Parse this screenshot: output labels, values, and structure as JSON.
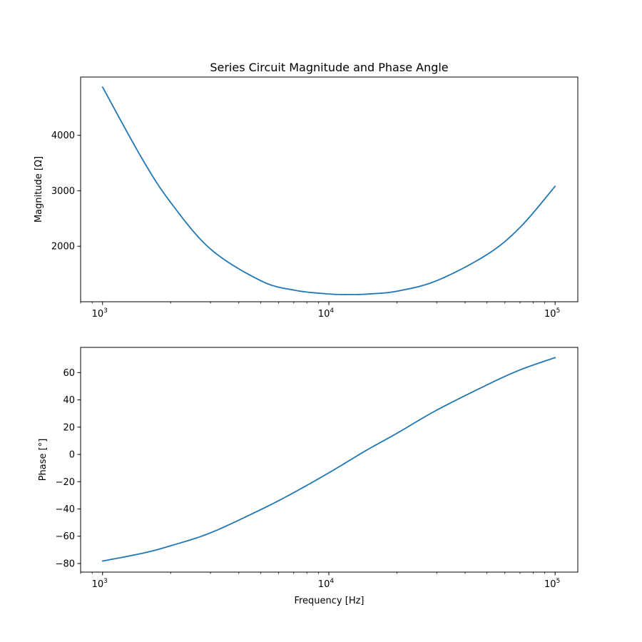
{
  "chart_data": [
    {
      "type": "line",
      "title": "Series Circuit Magnitude and Phase Angle",
      "xlabel": "",
      "ylabel": "Magnitude [Ω]",
      "xscale": "log",
      "xlim": [
        800,
        126000
      ],
      "ylim": [
        1000,
        5050
      ],
      "x_ticks": [
        {
          "base": "10",
          "exp": "3",
          "value": 1000
        },
        {
          "base": "10",
          "exp": "4",
          "value": 10000
        },
        {
          "base": "10",
          "exp": "5",
          "value": 100000
        }
      ],
      "y_ticks": [
        {
          "label": "2000",
          "value": 2000
        },
        {
          "label": "3000",
          "value": 3000
        },
        {
          "label": "4000",
          "value": 4000
        }
      ],
      "grid": false,
      "series": [
        {
          "color": "#1f77b4",
          "x": [
            1000,
            1500,
            2000,
            3000,
            5000,
            7000,
            10000,
            12600,
            15000,
            20000,
            30000,
            50000,
            70000,
            100000
          ],
          "y": [
            4870,
            3570,
            2790,
            1950,
            1380,
            1210,
            1140,
            1130,
            1140,
            1190,
            1380,
            1850,
            2340,
            3080
          ]
        }
      ]
    },
    {
      "type": "line",
      "title": "",
      "xlabel": "Frequency [Hz]",
      "ylabel": "Phase [°]",
      "xscale": "log",
      "xlim": [
        800,
        126000
      ],
      "ylim": [
        -86.3,
        78.5
      ],
      "x_ticks": [
        {
          "base": "10",
          "exp": "3",
          "value": 1000
        },
        {
          "base": "10",
          "exp": "4",
          "value": 10000
        },
        {
          "base": "10",
          "exp": "5",
          "value": 100000
        }
      ],
      "y_ticks": [
        {
          "label": "−80",
          "value": -80
        },
        {
          "label": "−60",
          "value": -60
        },
        {
          "label": "−40",
          "value": -40
        },
        {
          "label": "−20",
          "value": -20
        },
        {
          "label": "0",
          "value": 0
        },
        {
          "label": "20",
          "value": 20
        },
        {
          "label": "40",
          "value": 40
        },
        {
          "label": "60",
          "value": 60
        }
      ],
      "grid": false,
      "series": [
        {
          "color": "#1f77b4",
          "x": [
            1000,
            1500,
            2000,
            3000,
            5000,
            7000,
            10000,
            12600,
            15000,
            20000,
            30000,
            50000,
            70000,
            100000
          ],
          "y": [
            -78.2,
            -72.5,
            -67.0,
            -57.5,
            -40.5,
            -28.0,
            -13.5,
            -3.5,
            4.0,
            15.5,
            32.5,
            51.0,
            62.0,
            71.0
          ]
        }
      ]
    }
  ]
}
